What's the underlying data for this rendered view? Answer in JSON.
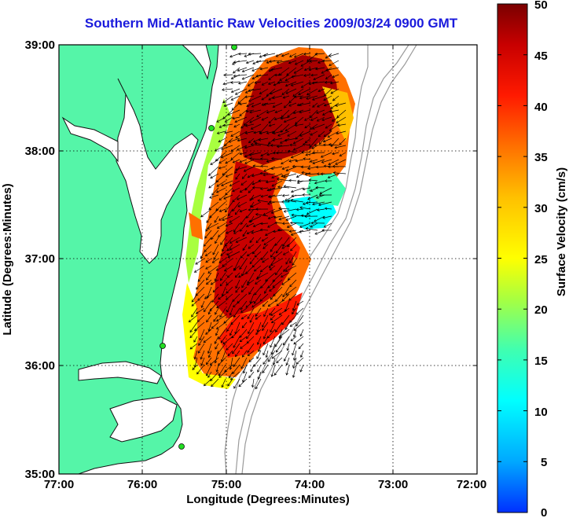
{
  "title": "Southern Mid-Atlantic Raw Velocities 2009/03/24 0900 GMT",
  "xlabel": "Longitude (Degrees:Minutes)",
  "ylabel": "Latitude (Degrees:Minutes)",
  "x_ticks": [
    "77:00",
    "76:00",
    "75:00",
    "74:00",
    "73:00",
    "72:00"
  ],
  "y_ticks": [
    "39:00",
    "38:00",
    "37:00",
    "36:00",
    "35:00"
  ],
  "colorbar": {
    "label": "Surface Velocity (cm/s)",
    "ticks": [
      "50",
      "45",
      "40",
      "35",
      "30",
      "25",
      "20",
      "15",
      "10",
      "5",
      "0"
    ],
    "min": 0,
    "max": 50
  },
  "colors": {
    "land": "#55f5a8",
    "coast": "#111111",
    "bathymetry": "#9a9a9a",
    "stations": "#22dd22"
  }
}
